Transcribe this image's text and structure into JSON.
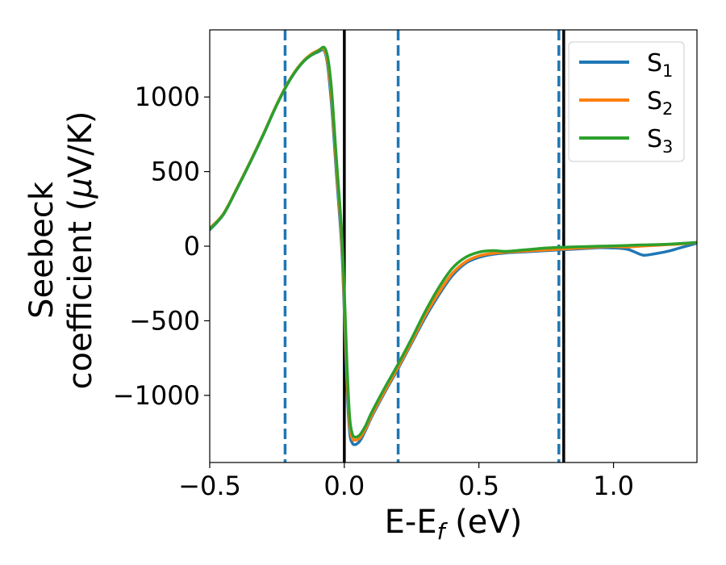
{
  "chart_data": {
    "type": "line",
    "xlabel": "E-E",
    "xlabel_sub": "f",
    "xlabel_unit": " (eV)",
    "ylabel_line1": "Seebeck",
    "ylabel_line2": "coefficient  (",
    "ylabel_mu": "μ",
    "ylabel_unit": "V/K)",
    "xlim": [
      -0.5,
      1.31
    ],
    "ylim": [
      -1450,
      1450
    ],
    "xticks": [
      {
        "value": -0.5,
        "label": "−0.5"
      },
      {
        "value": 0.0,
        "label": "0.0"
      },
      {
        "value": 0.5,
        "label": "0.5"
      },
      {
        "value": 1.0,
        "label": "1.0"
      }
    ],
    "yticks": [
      {
        "value": 1000,
        "label": "1000"
      },
      {
        "value": 500,
        "label": "500"
      },
      {
        "value": 0,
        "label": "0"
      },
      {
        "value": -500,
        "label": "−500"
      },
      {
        "value": -1000,
        "label": "−1000"
      }
    ],
    "vlines_solid": [
      0.0,
      0.815
    ],
    "vlines_dashed": [
      -0.22,
      0.2,
      0.797
    ],
    "vline_solid_color": "#000000",
    "vline_dashed_color": "#1f77b4",
    "legend_position": "top-right",
    "series": [
      {
        "name": "S",
        "sub": "1",
        "color": "#1f77b4",
        "x": [
          -0.5,
          -0.45,
          -0.4,
          -0.35,
          -0.3,
          -0.25,
          -0.2,
          -0.15,
          -0.1,
          -0.07,
          -0.05,
          -0.03,
          -0.01,
          0.0,
          0.01,
          0.02,
          0.03,
          0.04,
          0.05,
          0.06,
          0.08,
          0.1,
          0.15,
          0.2,
          0.25,
          0.3,
          0.35,
          0.4,
          0.45,
          0.5,
          0.55,
          0.6,
          0.65,
          0.7,
          0.75,
          0.8,
          0.85,
          0.9,
          0.95,
          1.0,
          1.05,
          1.08,
          1.11,
          1.14,
          1.2,
          1.25,
          1.31
        ],
        "y": [
          110,
          210,
          380,
          560,
          750,
          950,
          1120,
          1240,
          1300,
          1290,
          1000,
          500,
          0,
          -450,
          -950,
          -1250,
          -1320,
          -1330,
          -1320,
          -1300,
          -1230,
          -1150,
          -980,
          -820,
          -650,
          -480,
          -330,
          -200,
          -115,
          -75,
          -55,
          -45,
          -40,
          -35,
          -30,
          -25,
          -20,
          -15,
          -10,
          -12,
          -20,
          -40,
          -60,
          -55,
          -35,
          -10,
          20
        ]
      },
      {
        "name": "S",
        "sub": "2",
        "color": "#ff7f0e",
        "x": [
          -0.5,
          -0.45,
          -0.4,
          -0.35,
          -0.3,
          -0.25,
          -0.2,
          -0.15,
          -0.1,
          -0.07,
          -0.05,
          -0.03,
          -0.01,
          0.0,
          0.01,
          0.02,
          0.03,
          0.04,
          0.05,
          0.06,
          0.08,
          0.1,
          0.15,
          0.2,
          0.25,
          0.3,
          0.35,
          0.4,
          0.45,
          0.5,
          0.55,
          0.6,
          0.65,
          0.7,
          0.75,
          0.8,
          0.85,
          0.9,
          0.95,
          1.0,
          1.05,
          1.1,
          1.15,
          1.2,
          1.25,
          1.31
        ],
        "y": [
          120,
          215,
          385,
          565,
          755,
          955,
          1125,
          1245,
          1310,
          1300,
          1050,
          550,
          50,
          -380,
          -880,
          -1200,
          -1290,
          -1300,
          -1295,
          -1280,
          -1220,
          -1140,
          -970,
          -810,
          -640,
          -465,
          -315,
          -185,
          -105,
          -65,
          -48,
          -40,
          -35,
          -30,
          -25,
          -20,
          -15,
          -10,
          -5,
          -3,
          -5,
          0,
          5,
          10,
          15,
          25
        ]
      },
      {
        "name": "S",
        "sub": "3",
        "color": "#2ca02c",
        "x": [
          -0.5,
          -0.45,
          -0.4,
          -0.35,
          -0.3,
          -0.25,
          -0.2,
          -0.15,
          -0.1,
          -0.07,
          -0.05,
          -0.03,
          -0.01,
          0.0,
          0.01,
          0.02,
          0.03,
          0.04,
          0.05,
          0.06,
          0.08,
          0.1,
          0.15,
          0.2,
          0.25,
          0.3,
          0.35,
          0.4,
          0.45,
          0.5,
          0.55,
          0.6,
          0.65,
          0.7,
          0.75,
          0.8,
          0.85,
          0.9,
          0.95,
          1.0,
          1.05,
          1.1,
          1.15,
          1.2,
          1.25,
          1.31
        ],
        "y": [
          115,
          212,
          382,
          562,
          752,
          952,
          1122,
          1242,
          1305,
          1320,
          1100,
          600,
          100,
          -300,
          -800,
          -1150,
          -1260,
          -1280,
          -1275,
          -1260,
          -1200,
          -1120,
          -950,
          -790,
          -620,
          -440,
          -280,
          -150,
          -75,
          -40,
          -30,
          -35,
          -28,
          -20,
          -12,
          -8,
          -5,
          -3,
          0,
          2,
          5,
          8,
          10,
          13,
          18,
          25
        ]
      }
    ]
  }
}
